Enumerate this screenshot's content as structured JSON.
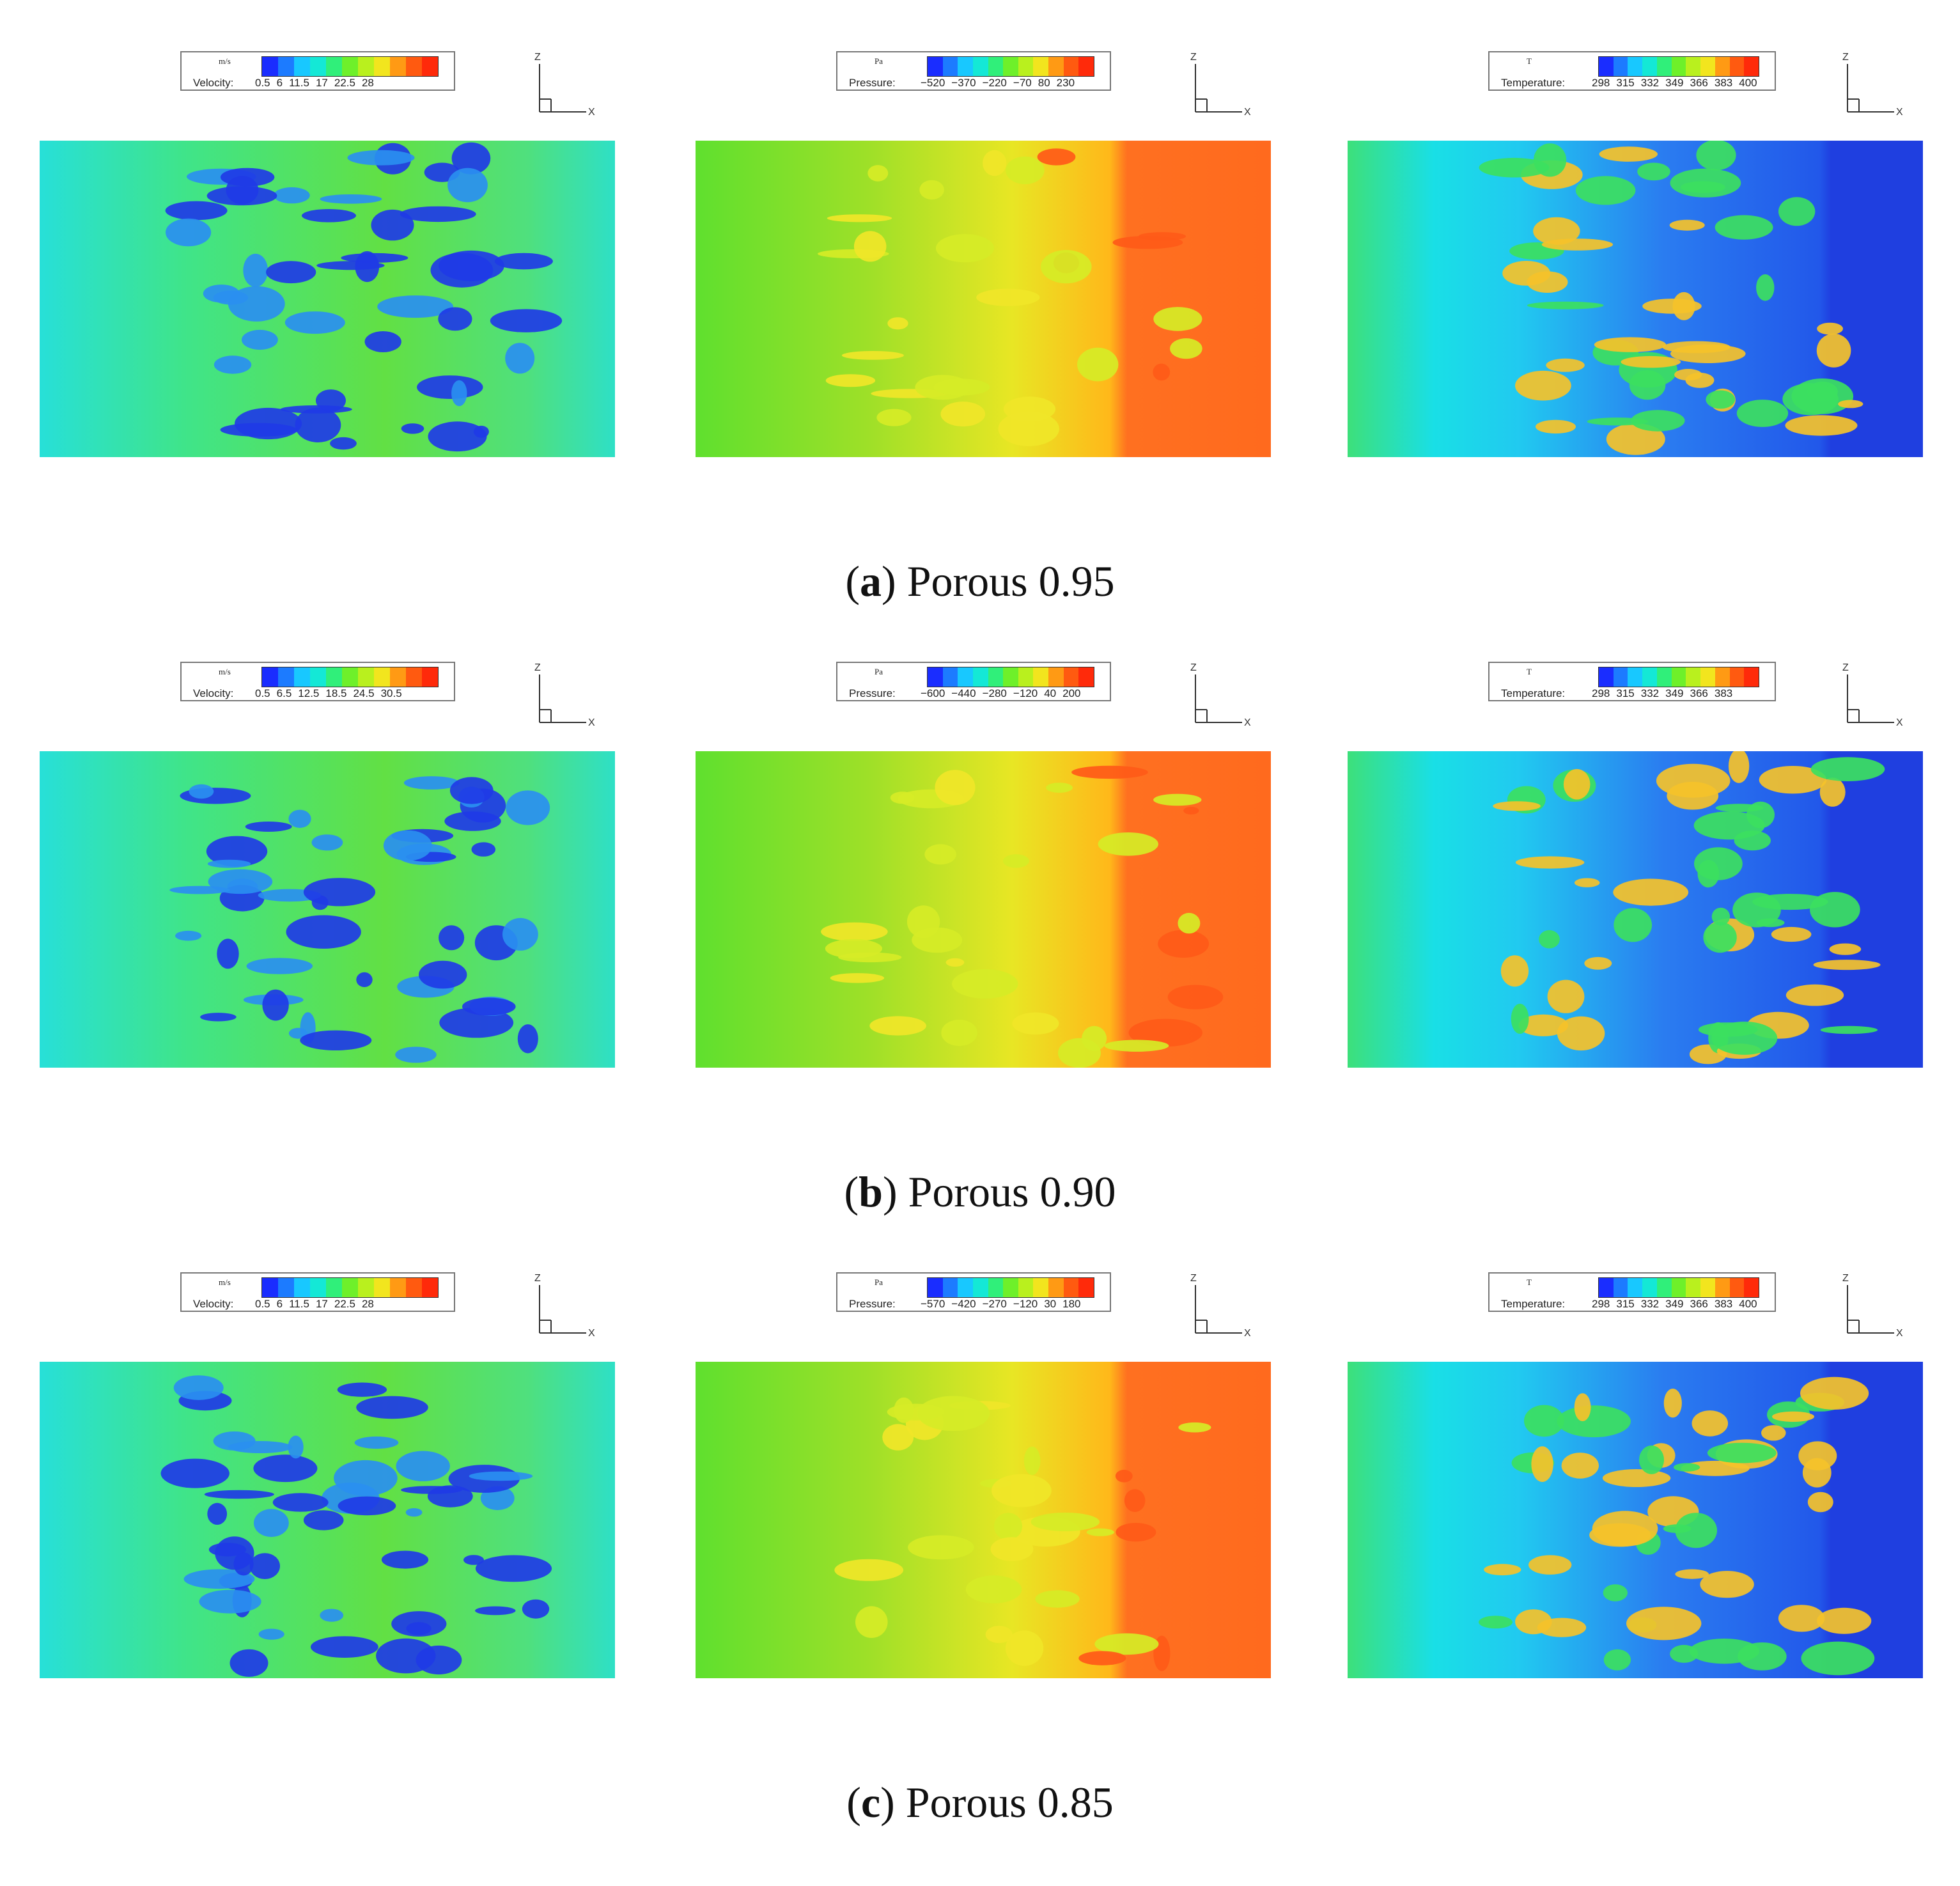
{
  "rows": [
    {
      "caption_letter": "a",
      "caption_text": "Porous 0.95",
      "velocity": {
        "unit": "m/s",
        "label": "Velocity:",
        "ticks": [
          "0.5",
          "6",
          "11.5",
          "17",
          "22.5",
          "28"
        ]
      },
      "pressure": {
        "unit": "Pa",
        "label": "Pressure:",
        "ticks": [
          "−520",
          "−370",
          "−220",
          "−70",
          "80",
          "230"
        ]
      },
      "temperature": {
        "unit": "T",
        "label": "Temperature:",
        "ticks": [
          "298",
          "315",
          "332",
          "349",
          "366",
          "383",
          "400"
        ]
      }
    },
    {
      "caption_letter": "b",
      "caption_text": "Porous 0.90",
      "velocity": {
        "unit": "m/s",
        "label": "Velocity:",
        "ticks": [
          "0.5",
          "6.5",
          "12.5",
          "18.5",
          "24.5",
          "30.5"
        ]
      },
      "pressure": {
        "unit": "Pa",
        "label": "Pressure:",
        "ticks": [
          "−600",
          "−440",
          "−280",
          "−120",
          "40",
          "200"
        ]
      },
      "temperature": {
        "unit": "T",
        "label": "Temperature:",
        "ticks": [
          "298",
          "315",
          "332",
          "349",
          "366",
          "383"
        ]
      }
    },
    {
      "caption_letter": "c",
      "caption_text": "Porous 0.85",
      "velocity": {
        "unit": "m/s",
        "label": "Velocity:",
        "ticks": [
          "0.5",
          "6",
          "11.5",
          "17",
          "22.5",
          "28"
        ]
      },
      "pressure": {
        "unit": "Pa",
        "label": "Pressure:",
        "ticks": [
          "−570",
          "−420",
          "−270",
          "−120",
          "30",
          "180"
        ]
      },
      "temperature": {
        "unit": "T",
        "label": "Temperature:",
        "ticks": [
          "298",
          "315",
          "332",
          "349",
          "366",
          "383",
          "400"
        ]
      }
    }
  ],
  "axes": {
    "z": "Z",
    "x": "X"
  },
  "colors": {
    "blue": "#1f3fe0",
    "cyan": "#19e3e3",
    "green": "#59e02c",
    "yellow": "#f4e52a",
    "orange": "#ff7a1c",
    "red": "#ff2a10"
  }
}
